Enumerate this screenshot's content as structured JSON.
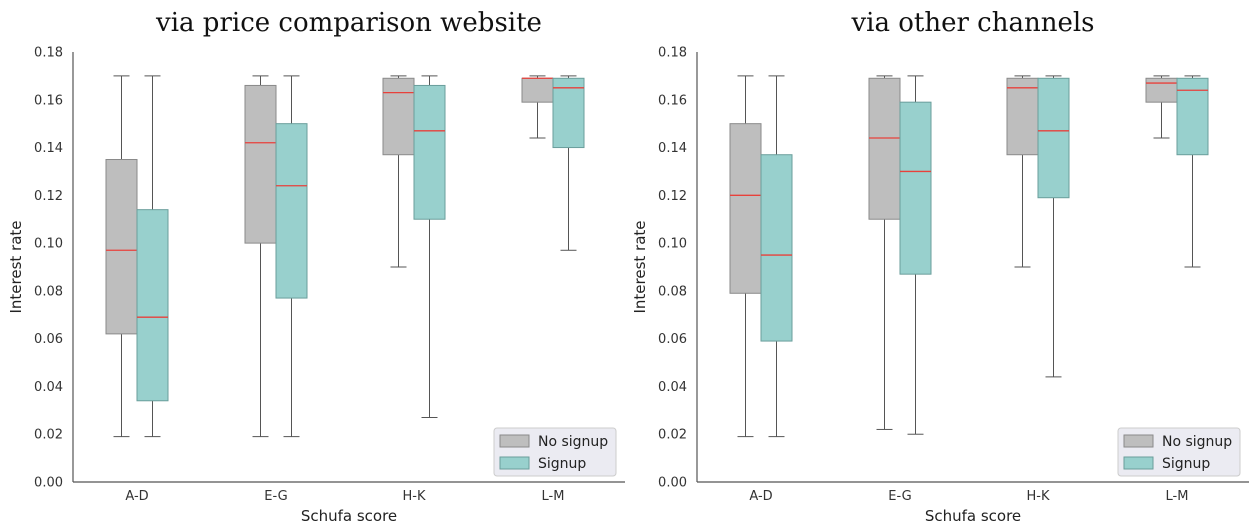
{
  "chart_data": [
    {
      "type": "box",
      "title": "via price comparison website",
      "xlabel": "Schufa score",
      "ylabel": "Interest rate",
      "categories": [
        "A-D",
        "E-G",
        "H-K",
        "L-M"
      ],
      "ylim": [
        0.0,
        0.18
      ],
      "yticks": [
        "0.00",
        "0.02",
        "0.04",
        "0.06",
        "0.08",
        "0.10",
        "0.12",
        "0.14",
        "0.16",
        "0.18"
      ],
      "legend_position": "lower-right",
      "grid": false,
      "median_color": "#e8413b",
      "series": [
        {
          "name": "No signup",
          "color": "#bebebe",
          "edge_color": "#8a8a8a",
          "boxes": [
            {
              "whisker_low": 0.019,
              "q1": 0.062,
              "median": 0.097,
              "q3": 0.135,
              "whisker_high": 0.17
            },
            {
              "whisker_low": 0.019,
              "q1": 0.1,
              "median": 0.142,
              "q3": 0.166,
              "whisker_high": 0.17
            },
            {
              "whisker_low": 0.09,
              "q1": 0.137,
              "median": 0.163,
              "q3": 0.169,
              "whisker_high": 0.17
            },
            {
              "whisker_low": 0.144,
              "q1": 0.159,
              "median": 0.169,
              "q3": 0.169,
              "whisker_high": 0.17
            }
          ]
        },
        {
          "name": "Signup",
          "color": "#98d0cd",
          "edge_color": "#6a9e9b",
          "boxes": [
            {
              "whisker_low": 0.019,
              "q1": 0.034,
              "median": 0.069,
              "q3": 0.114,
              "whisker_high": 0.17
            },
            {
              "whisker_low": 0.019,
              "q1": 0.077,
              "median": 0.124,
              "q3": 0.15,
              "whisker_high": 0.17
            },
            {
              "whisker_low": 0.027,
              "q1": 0.11,
              "median": 0.147,
              "q3": 0.166,
              "whisker_high": 0.17
            },
            {
              "whisker_low": 0.097,
              "q1": 0.14,
              "median": 0.165,
              "q3": 0.169,
              "whisker_high": 0.17
            }
          ]
        }
      ]
    },
    {
      "type": "box",
      "title": "via other channels",
      "xlabel": "Schufa score",
      "ylabel": "Interest rate",
      "categories": [
        "A-D",
        "E-G",
        "H-K",
        "L-M"
      ],
      "ylim": [
        0.0,
        0.18
      ],
      "yticks": [
        "0.00",
        "0.02",
        "0.04",
        "0.06",
        "0.08",
        "0.10",
        "0.12",
        "0.14",
        "0.16",
        "0.18"
      ],
      "legend_position": "lower-right",
      "grid": false,
      "median_color": "#e8413b",
      "series": [
        {
          "name": "No signup",
          "color": "#bebebe",
          "edge_color": "#8a8a8a",
          "boxes": [
            {
              "whisker_low": 0.019,
              "q1": 0.079,
              "median": 0.12,
              "q3": 0.15,
              "whisker_high": 0.17
            },
            {
              "whisker_low": 0.022,
              "q1": 0.11,
              "median": 0.144,
              "q3": 0.169,
              "whisker_high": 0.17
            },
            {
              "whisker_low": 0.09,
              "q1": 0.137,
              "median": 0.165,
              "q3": 0.169,
              "whisker_high": 0.17
            },
            {
              "whisker_low": 0.144,
              "q1": 0.159,
              "median": 0.167,
              "q3": 0.169,
              "whisker_high": 0.17
            }
          ]
        },
        {
          "name": "Signup",
          "color": "#98d0cd",
          "edge_color": "#6a9e9b",
          "boxes": [
            {
              "whisker_low": 0.019,
              "q1": 0.059,
              "median": 0.095,
              "q3": 0.137,
              "whisker_high": 0.17
            },
            {
              "whisker_low": 0.02,
              "q1": 0.087,
              "median": 0.13,
              "q3": 0.159,
              "whisker_high": 0.17
            },
            {
              "whisker_low": 0.044,
              "q1": 0.119,
              "median": 0.147,
              "q3": 0.169,
              "whisker_high": 0.17
            },
            {
              "whisker_low": 0.09,
              "q1": 0.137,
              "median": 0.164,
              "q3": 0.169,
              "whisker_high": 0.17
            }
          ]
        }
      ]
    }
  ]
}
